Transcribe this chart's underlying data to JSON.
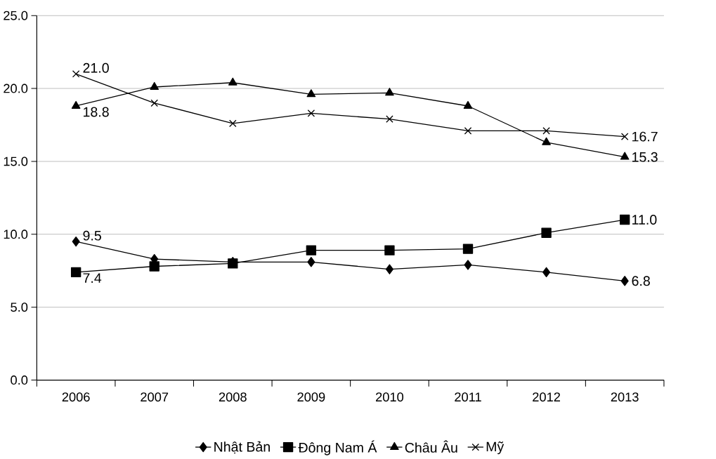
{
  "chart_data": {
    "type": "line",
    "categories": [
      "2006",
      "2007",
      "2008",
      "2009",
      "2010",
      "2011",
      "2012",
      "2013"
    ],
    "series": [
      {
        "name": "Nhật Bản",
        "color": "#000000",
        "marker": "diamond",
        "values": [
          9.5,
          8.3,
          8.1,
          8.1,
          7.6,
          7.9,
          7.4,
          6.8
        ],
        "value_labels": [
          "9.5",
          null,
          null,
          null,
          null,
          null,
          null,
          "6.8"
        ]
      },
      {
        "name": "Đông Nam Á",
        "color": "#000000",
        "marker": "square",
        "values": [
          7.4,
          7.8,
          8.0,
          8.9,
          8.9,
          9.0,
          10.1,
          11.0
        ],
        "value_labels": [
          "7.4",
          null,
          null,
          null,
          null,
          null,
          null,
          "11.0"
        ]
      },
      {
        "name": "Châu Âu",
        "color": "#000000",
        "marker": "triangle",
        "values": [
          18.8,
          20.1,
          20.4,
          19.6,
          19.7,
          18.8,
          16.3,
          15.3
        ],
        "value_labels": [
          "18.8",
          null,
          null,
          null,
          null,
          null,
          null,
          "15.3"
        ]
      },
      {
        "name": "Mỹ",
        "color": "#000000",
        "marker": "cross",
        "values": [
          21.0,
          19.0,
          17.6,
          18.3,
          17.9,
          17.1,
          17.1,
          16.7
        ],
        "value_labels": [
          "21.0",
          null,
          null,
          null,
          null,
          null,
          null,
          "16.7"
        ]
      }
    ],
    "ylim": [
      0,
      25
    ],
    "yticks": [
      {
        "value": 0,
        "label": "0.0"
      },
      {
        "value": 5,
        "label": "5.0"
      },
      {
        "value": 10,
        "label": "10.0"
      },
      {
        "value": 15,
        "label": "15.0"
      },
      {
        "value": 20,
        "label": "20.0"
      },
      {
        "value": 25,
        "label": "25.0"
      }
    ],
    "grid": "y",
    "legend": "bottom",
    "line_style": "solid"
  }
}
